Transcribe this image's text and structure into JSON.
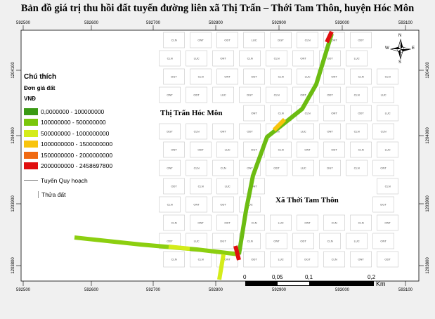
{
  "title": "Bản đồ giá trị thu hồi đất tuyến đường liên xã Thị Trấn – Thới Tam Thôn, huyện Hóc Môn",
  "x_ticks": [
    "592500",
    "592600",
    "592700",
    "592800",
    "592900",
    "593000",
    "593100"
  ],
  "y_ticks": [
    "1204100",
    "1204000",
    "1203900",
    "1203800"
  ],
  "legend": {
    "title": "Chú thích",
    "subtitle": "Đơn giá đất",
    "unit": "VNĐ",
    "classes": [
      {
        "label": "0,0000000 - 100000000",
        "color": "#3a9a14"
      },
      {
        "label": "100000000 - 500000000",
        "color": "#7ac70c"
      },
      {
        "label": "500000000 - 1000000000",
        "color": "#d4ec1a"
      },
      {
        "label": "1000000000 - 1500000000",
        "color": "#f8c40c"
      },
      {
        "label": "1500000000 - 2000000000",
        "color": "#f06a12"
      },
      {
        "label": "2000000000 - 2458697800",
        "color": "#e00f0f"
      }
    ],
    "line_label": "Tuyến Quy hoạch",
    "parcel_label": "Thửa đất"
  },
  "places": {
    "thi_tran": "Thị Trấn Hóc Môn",
    "thoi_tam_thon": "Xã Thới Tam Thôn"
  },
  "parcel_codes": [
    "CLN",
    "ONT",
    "ODT",
    "LUC",
    "DGT",
    "CLN",
    "ONT",
    "ODT",
    "CLN",
    "LUC",
    "ONT",
    "CLN"
  ],
  "north": {
    "letters": [
      "N",
      "E",
      "S",
      "W"
    ]
  },
  "scale_bar": {
    "labels": [
      "0",
      "0,05",
      "0,1",
      "0,2"
    ],
    "unit": "Km"
  }
}
